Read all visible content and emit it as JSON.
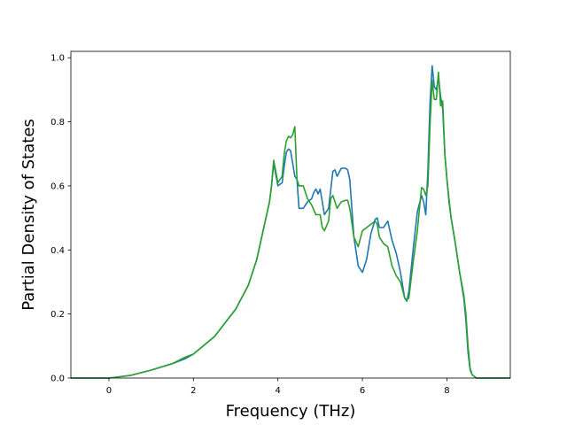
{
  "chart_data": {
    "type": "line",
    "title": "",
    "xlabel": "Frequency (THz)",
    "ylabel": "Partial Density of States",
    "xlim": [
      -0.9,
      9.5
    ],
    "ylim": [
      0.0,
      1.02
    ],
    "grid": false,
    "legend": "none",
    "x_ticks": [
      0,
      2,
      4,
      6,
      8
    ],
    "y_ticks": [
      0.0,
      0.2,
      0.4,
      0.6,
      0.8,
      1.0
    ],
    "x_tick_labels": [
      "0",
      "2",
      "4",
      "6",
      "8"
    ],
    "y_tick_labels": [
      "0.0",
      "0.2",
      "0.4",
      "0.6",
      "0.8",
      "1.0"
    ],
    "series": [
      {
        "color": "#1f77b4",
        "x": [
          -0.9,
          0.0,
          0.5,
          1.0,
          1.5,
          1.8,
          2.0,
          2.5,
          3.0,
          3.3,
          3.5,
          3.7,
          3.8,
          3.85,
          3.9,
          4.0,
          4.1,
          4.15,
          4.2,
          4.25,
          4.3,
          4.4,
          4.45,
          4.5,
          4.6,
          4.7,
          4.8,
          4.85,
          4.9,
          4.95,
          5.0,
          5.1,
          5.2,
          5.3,
          5.35,
          5.4,
          5.5,
          5.6,
          5.65,
          5.7,
          5.8,
          5.9,
          6.0,
          6.1,
          6.2,
          6.3,
          6.35,
          6.4,
          6.5,
          6.6,
          6.7,
          6.8,
          6.9,
          7.0,
          7.05,
          7.1,
          7.2,
          7.3,
          7.4,
          7.45,
          7.5,
          7.55,
          7.6,
          7.65,
          7.7,
          7.75,
          7.8,
          7.85,
          7.9,
          7.95,
          8.0,
          8.05,
          8.1,
          8.2,
          8.3,
          8.4,
          8.45,
          8.5,
          8.55,
          8.6,
          8.7,
          8.8,
          9.0,
          9.5
        ],
        "y": [
          0.0,
          0.0,
          0.008,
          0.025,
          0.045,
          0.06,
          0.075,
          0.13,
          0.215,
          0.29,
          0.37,
          0.49,
          0.55,
          0.6,
          0.67,
          0.6,
          0.61,
          0.66,
          0.705,
          0.715,
          0.71,
          0.63,
          0.62,
          0.53,
          0.53,
          0.55,
          0.56,
          0.58,
          0.59,
          0.575,
          0.59,
          0.51,
          0.53,
          0.645,
          0.65,
          0.63,
          0.655,
          0.655,
          0.65,
          0.62,
          0.44,
          0.35,
          0.33,
          0.37,
          0.45,
          0.495,
          0.5,
          0.47,
          0.47,
          0.49,
          0.43,
          0.39,
          0.33,
          0.25,
          0.24,
          0.27,
          0.4,
          0.52,
          0.57,
          0.55,
          0.51,
          0.65,
          0.86,
          0.975,
          0.91,
          0.9,
          0.94,
          0.88,
          0.84,
          0.7,
          0.62,
          0.55,
          0.5,
          0.42,
          0.33,
          0.25,
          0.18,
          0.08,
          0.025,
          0.01,
          0.0,
          0.0,
          0.0,
          0.0
        ]
      },
      {
        "color": "#2ca02c",
        "x": [
          -0.9,
          0.0,
          0.5,
          1.0,
          1.5,
          1.8,
          2.0,
          2.5,
          3.0,
          3.3,
          3.5,
          3.7,
          3.8,
          3.85,
          3.9,
          4.0,
          4.1,
          4.15,
          4.2,
          4.25,
          4.3,
          4.35,
          4.4,
          4.45,
          4.5,
          4.6,
          4.7,
          4.8,
          4.9,
          5.0,
          5.05,
          5.1,
          5.2,
          5.25,
          5.3,
          5.4,
          5.5,
          5.6,
          5.65,
          5.7,
          5.8,
          5.9,
          6.0,
          6.1,
          6.2,
          6.3,
          6.35,
          6.4,
          6.5,
          6.6,
          6.7,
          6.8,
          6.9,
          7.0,
          7.05,
          7.1,
          7.2,
          7.3,
          7.4,
          7.45,
          7.5,
          7.55,
          7.6,
          7.65,
          7.7,
          7.75,
          7.8,
          7.85,
          7.9,
          7.95,
          8.0,
          8.05,
          8.1,
          8.2,
          8.3,
          8.4,
          8.45,
          8.5,
          8.55,
          8.6,
          8.7,
          8.8,
          9.0,
          9.5
        ],
        "y": [
          0.0,
          0.0,
          0.008,
          0.025,
          0.045,
          0.065,
          0.075,
          0.13,
          0.215,
          0.29,
          0.37,
          0.49,
          0.55,
          0.6,
          0.68,
          0.61,
          0.63,
          0.7,
          0.74,
          0.755,
          0.75,
          0.76,
          0.785,
          0.62,
          0.6,
          0.6,
          0.56,
          0.54,
          0.51,
          0.51,
          0.47,
          0.46,
          0.49,
          0.56,
          0.57,
          0.53,
          0.55,
          0.555,
          0.555,
          0.53,
          0.44,
          0.41,
          0.46,
          0.47,
          0.48,
          0.49,
          0.48,
          0.44,
          0.42,
          0.41,
          0.35,
          0.32,
          0.3,
          0.25,
          0.245,
          0.25,
          0.36,
          0.46,
          0.595,
          0.59,
          0.57,
          0.6,
          0.79,
          0.93,
          0.87,
          0.87,
          0.955,
          0.85,
          0.865,
          0.7,
          0.62,
          0.56,
          0.5,
          0.42,
          0.33,
          0.26,
          0.2,
          0.1,
          0.03,
          0.01,
          0.0,
          0.0,
          0.0,
          0.0
        ]
      }
    ]
  }
}
